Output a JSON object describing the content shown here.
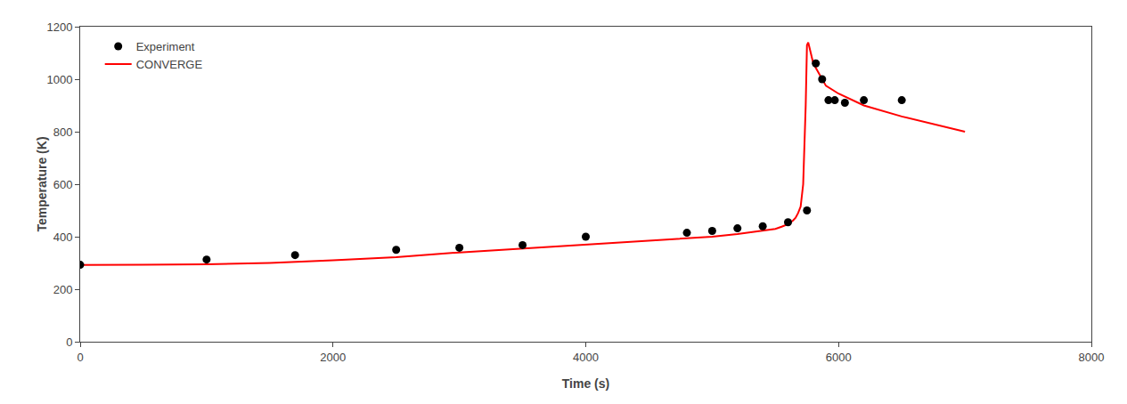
{
  "chart_data": {
    "type": "line",
    "xlabel": "Time (s)",
    "ylabel": "Temperature (K)",
    "series": [
      {
        "name": "Experiment",
        "type": "scatter",
        "marker": "circle",
        "color": "#000000",
        "x": [
          0,
          1000,
          1700,
          2500,
          3000,
          3500,
          4000,
          4800,
          5000,
          5200,
          5400,
          5600,
          5750,
          5820,
          5870,
          5920,
          5970,
          6050,
          6200,
          6500
        ],
        "values": [
          293,
          313,
          330,
          350,
          358,
          368,
          400,
          415,
          422,
          432,
          440,
          455,
          500,
          1060,
          1000,
          920,
          920,
          910,
          920,
          920
        ]
      },
      {
        "name": "CONVERGE",
        "type": "line",
        "line_style": "solid",
        "color": "#ff0000",
        "x": [
          0,
          200,
          500,
          1000,
          1500,
          2000,
          2500,
          3000,
          3500,
          4000,
          4500,
          5000,
          5200,
          5400,
          5500,
          5550,
          5600,
          5640,
          5660,
          5680,
          5700,
          5720,
          5730,
          5740,
          5750,
          5760,
          5770,
          5800,
          5900,
          6000,
          6200,
          6500,
          7000
        ],
        "values": [
          292,
          292,
          293,
          295,
          300,
          310,
          322,
          340,
          355,
          372,
          386,
          400,
          410,
          422,
          430,
          438,
          448,
          462,
          472,
          490,
          515,
          600,
          720,
          900,
          1130,
          1140,
          1120,
          1060,
          975,
          945,
          900,
          858,
          800
        ]
      }
    ],
    "xlim": [
      0,
      8000
    ],
    "ylim": [
      0,
      1200
    ],
    "xticks": [
      0,
      2000,
      4000,
      6000,
      8000
    ],
    "yticks": [
      0,
      200,
      400,
      600,
      800,
      1000,
      1200
    ],
    "grid": false,
    "legend": "upper left"
  }
}
